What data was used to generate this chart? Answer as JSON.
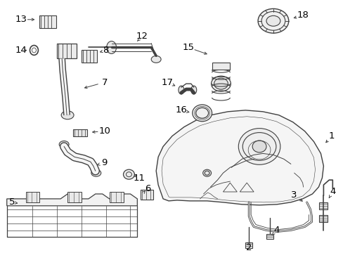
{
  "bg_color": "#ffffff",
  "line_color": "#404040",
  "label_color": "#000000",
  "fig_w": 4.89,
  "fig_h": 3.6,
  "dpi": 100,
  "font_size": 9.5,
  "arrow_fs": 8
}
